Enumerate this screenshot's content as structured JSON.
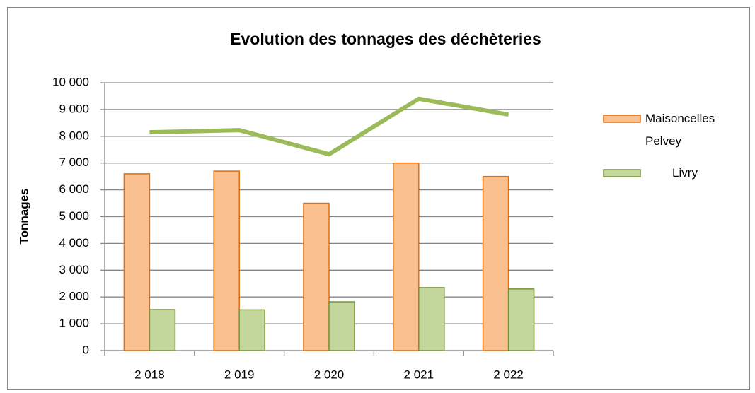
{
  "chart_data": {
    "type": "bar",
    "title": "Evolution des tonnages des déchèteries",
    "y_label": "Tonnages",
    "categories": [
      "2 018",
      "2 019",
      "2 020",
      "2 021",
      "2 022"
    ],
    "series": [
      {
        "name": "Maisoncelles Pelvey",
        "color": "#fac090",
        "edge": "#e46c0a",
        "values": [
          6600,
          6700,
          5500,
          7000,
          6500
        ]
      },
      {
        "name": "Livry",
        "color": "#c3d69b",
        "edge": "#77933c",
        "values": [
          1530,
          1520,
          1820,
          2350,
          2300
        ]
      },
      {
        "type": "line",
        "color": "#9bbb59",
        "values": [
          8150,
          8230,
          7330,
          9400,
          8810
        ]
      }
    ],
    "ylim": [
      0,
      10000
    ],
    "yticks": [
      0,
      {
        "value": 1000,
        "label": "1 000"
      },
      {
        "value": 2000,
        "label": "2 000"
      },
      {
        "value": 3000,
        "label": "3 000"
      },
      {
        "value": 4000,
        "label": "4 000"
      },
      {
        "value": 5000,
        "label": "5 000"
      },
      {
        "value": 6000,
        "label": "6 000"
      },
      {
        "value": 7000,
        "label": "7 000"
      },
      {
        "value": 8000,
        "label": "8 000"
      },
      {
        "value": 9000,
        "label": "9 000"
      },
      {
        "value": 10000,
        "label": "10 000"
      }
    ],
    "grid": true,
    "legend": "right"
  }
}
